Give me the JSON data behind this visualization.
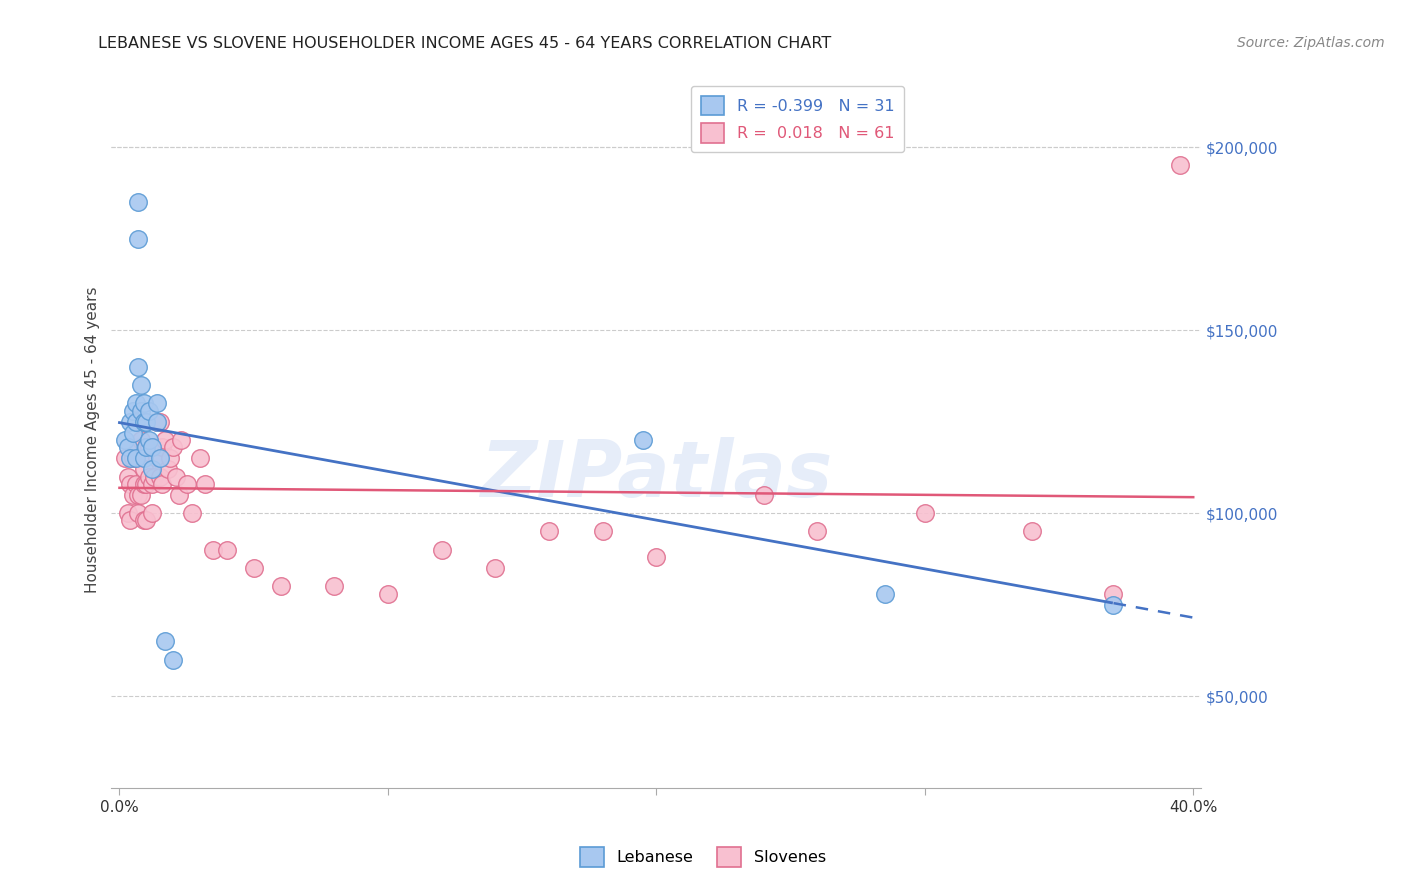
{
  "title": "LEBANESE VS SLOVENE HOUSEHOLDER INCOME AGES 45 - 64 YEARS CORRELATION CHART",
  "source": "Source: ZipAtlas.com",
  "ylabel": "Householder Income Ages 45 - 64 years",
  "xlim": [
    -0.003,
    0.403
  ],
  "ylim": [
    25000,
    215000
  ],
  "yticks": [
    50000,
    100000,
    150000,
    200000
  ],
  "ytick_labels": [
    "$50,000",
    "$100,000",
    "$150,000",
    "$200,000"
  ],
  "xticks": [
    0.0,
    0.1,
    0.2,
    0.3,
    0.4
  ],
  "xtick_labels": [
    "0.0%",
    "",
    "",
    "",
    "40.0%"
  ],
  "legend_R1": "R = -0.399",
  "legend_N1": "N = 31",
  "legend_R2": "R =  0.018",
  "legend_N2": "N = 61",
  "color_lebanese_fill": "#a8c8f0",
  "color_lebanese_edge": "#5b9bd5",
  "color_slovene_fill": "#f8c0d0",
  "color_slovene_edge": "#e07090",
  "color_line_lebanese": "#4472c4",
  "color_line_slovene": "#e05878",
  "watermark": "ZIPatlas",
  "lebanese_x": [
    0.002,
    0.003,
    0.004,
    0.004,
    0.005,
    0.005,
    0.006,
    0.006,
    0.006,
    0.007,
    0.007,
    0.007,
    0.008,
    0.008,
    0.009,
    0.009,
    0.009,
    0.01,
    0.01,
    0.011,
    0.011,
    0.012,
    0.012,
    0.014,
    0.014,
    0.015,
    0.017,
    0.02,
    0.195,
    0.285,
    0.37
  ],
  "lebanese_y": [
    120000,
    118000,
    125000,
    115000,
    128000,
    122000,
    130000,
    125000,
    115000,
    175000,
    185000,
    140000,
    128000,
    135000,
    125000,
    115000,
    130000,
    118000,
    125000,
    128000,
    120000,
    112000,
    118000,
    130000,
    125000,
    115000,
    65000,
    60000,
    120000,
    78000,
    75000
  ],
  "slovene_x": [
    0.002,
    0.003,
    0.003,
    0.004,
    0.004,
    0.005,
    0.005,
    0.006,
    0.006,
    0.007,
    0.007,
    0.007,
    0.008,
    0.008,
    0.008,
    0.009,
    0.009,
    0.009,
    0.01,
    0.01,
    0.01,
    0.011,
    0.011,
    0.012,
    0.012,
    0.013,
    0.013,
    0.014,
    0.014,
    0.015,
    0.015,
    0.016,
    0.016,
    0.017,
    0.018,
    0.019,
    0.02,
    0.021,
    0.022,
    0.023,
    0.025,
    0.027,
    0.03,
    0.032,
    0.035,
    0.04,
    0.05,
    0.06,
    0.08,
    0.1,
    0.12,
    0.14,
    0.16,
    0.18,
    0.2,
    0.24,
    0.26,
    0.3,
    0.34,
    0.37,
    0.395
  ],
  "slovene_y": [
    115000,
    110000,
    100000,
    108000,
    98000,
    115000,
    105000,
    115000,
    108000,
    118000,
    105000,
    100000,
    120000,
    105000,
    115000,
    108000,
    98000,
    112000,
    118000,
    108000,
    98000,
    118000,
    110000,
    108000,
    100000,
    118000,
    110000,
    125000,
    115000,
    125000,
    110000,
    118000,
    108000,
    120000,
    112000,
    115000,
    118000,
    110000,
    105000,
    120000,
    108000,
    100000,
    115000,
    108000,
    90000,
    90000,
    85000,
    80000,
    80000,
    78000,
    90000,
    85000,
    95000,
    95000,
    88000,
    105000,
    95000,
    100000,
    95000,
    78000,
    195000
  ]
}
